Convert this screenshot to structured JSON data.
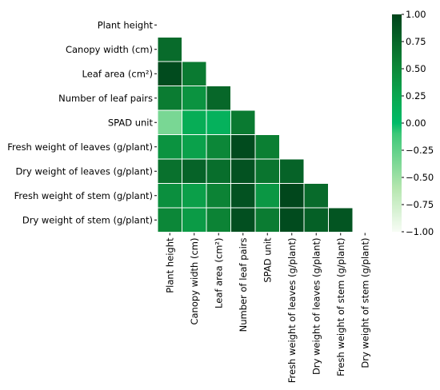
{
  "chart_data": {
    "type": "heatmap",
    "title": "",
    "xlabel": "",
    "ylabel": "",
    "mask": "upper-triangle-including-diagonal",
    "variables": [
      "Plant height",
      "Canopy width (cm)",
      "Leaf area (cm²)",
      "Number of leaf pairs",
      "SPAD unit",
      "Fresh weight of leaves (g/plant)",
      "Dry weight of leaves (g/plant)",
      "Fresh weight of stem (g/plant)",
      "Dry weight of stem (g/plant)"
    ],
    "x_tick_labels": [
      "Plant height",
      "Canopy width (cm)",
      "Leaf area (cm²)",
      "Number of leaf pairs",
      "SPAD unit",
      "Fresh weight of leaves (g/plant)",
      "Dry weight of leaves (g/plant)",
      "Fresh weight of stem (g/plant)",
      "Dry weight of stem (g/plant)"
    ],
    "y_tick_labels": [
      "Plant height",
      "Canopy width (cm)",
      "Leaf area (cm²)",
      "Number of leaf pairs",
      "SPAD unit",
      "Fresh weight of leaves (g/plant)",
      "Dry weight of leaves (g/plant)",
      "Fresh weight of stem (g/plant)",
      "Dry weight of stem (g/plant)"
    ],
    "values": [
      [
        null,
        null,
        null,
        null,
        null,
        null,
        null,
        null,
        null
      ],
      [
        0.72,
        null,
        null,
        null,
        null,
        null,
        null,
        null,
        null
      ],
      [
        0.95,
        0.62,
        null,
        null,
        null,
        null,
        null,
        null,
        null
      ],
      [
        0.6,
        0.42,
        0.75,
        null,
        null,
        null,
        null,
        null,
        null
      ],
      [
        -0.35,
        0.18,
        0.12,
        0.62,
        null,
        null,
        null,
        null,
        null
      ],
      [
        0.42,
        0.3,
        0.52,
        0.95,
        0.58,
        null,
        null,
        null,
        null
      ],
      [
        0.68,
        0.78,
        0.7,
        0.9,
        0.65,
        0.78,
        null,
        null,
        null
      ],
      [
        0.45,
        0.32,
        0.55,
        0.9,
        0.38,
        0.98,
        0.72,
        null,
        null
      ],
      [
        0.52,
        0.35,
        0.55,
        0.92,
        0.6,
        0.95,
        0.8,
        0.88,
        null
      ]
    ],
    "colorbar": {
      "colormap": "Greens",
      "vmin": -1.0,
      "vmax": 1.0,
      "ticks": [
        "1.00",
        "0.75",
        "0.50",
        "0.25",
        "0.00",
        "−0.25",
        "−0.50",
        "−0.75",
        "−1.00"
      ],
      "tick_values": [
        1.0,
        0.75,
        0.5,
        0.25,
        0.0,
        -0.25,
        -0.5,
        -0.75,
        -1.0
      ]
    },
    "grid": false,
    "legend": "colorbar-right"
  }
}
